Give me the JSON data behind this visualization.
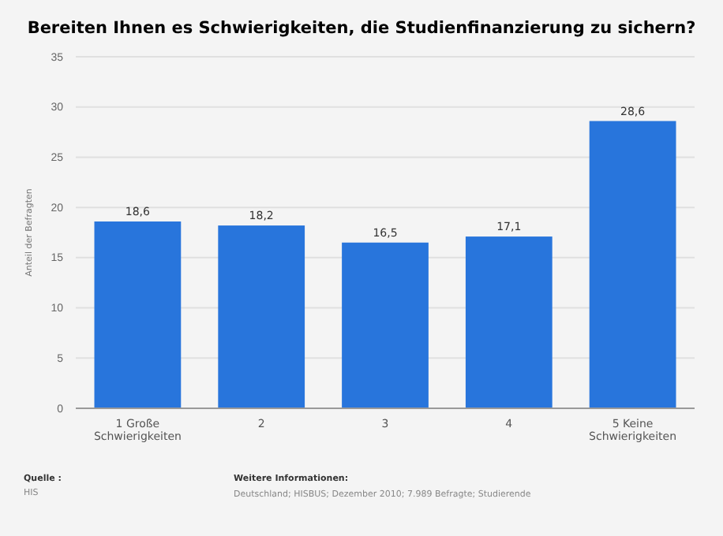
{
  "chart_data": {
    "type": "bar",
    "title": "Bereiten Ihnen es Schwierigkeiten, die Studienfinanzierung zu sichern?",
    "ylabel": "Anteil der Befragten",
    "categories": [
      "1 Große Schwierigkeiten",
      "2",
      "3",
      "4",
      "5 Keine Schwierigkeiten"
    ],
    "values": [
      18.6,
      18.2,
      16.5,
      17.1,
      28.6
    ],
    "value_labels": [
      "18,6",
      "18,2",
      "16,5",
      "17,1",
      "28,6"
    ],
    "color": "#2875dc",
    "ylim": [
      0,
      35
    ],
    "yticks": [
      0,
      5,
      10,
      15,
      20,
      25,
      30,
      35
    ],
    "grid": "y",
    "annotations": [
      "Quelle :",
      "HIS",
      "Weitere Informationen:",
      "Deutschland; HISBUS; Dezember 2010; 7.989 Befragte; Studierende"
    ]
  }
}
